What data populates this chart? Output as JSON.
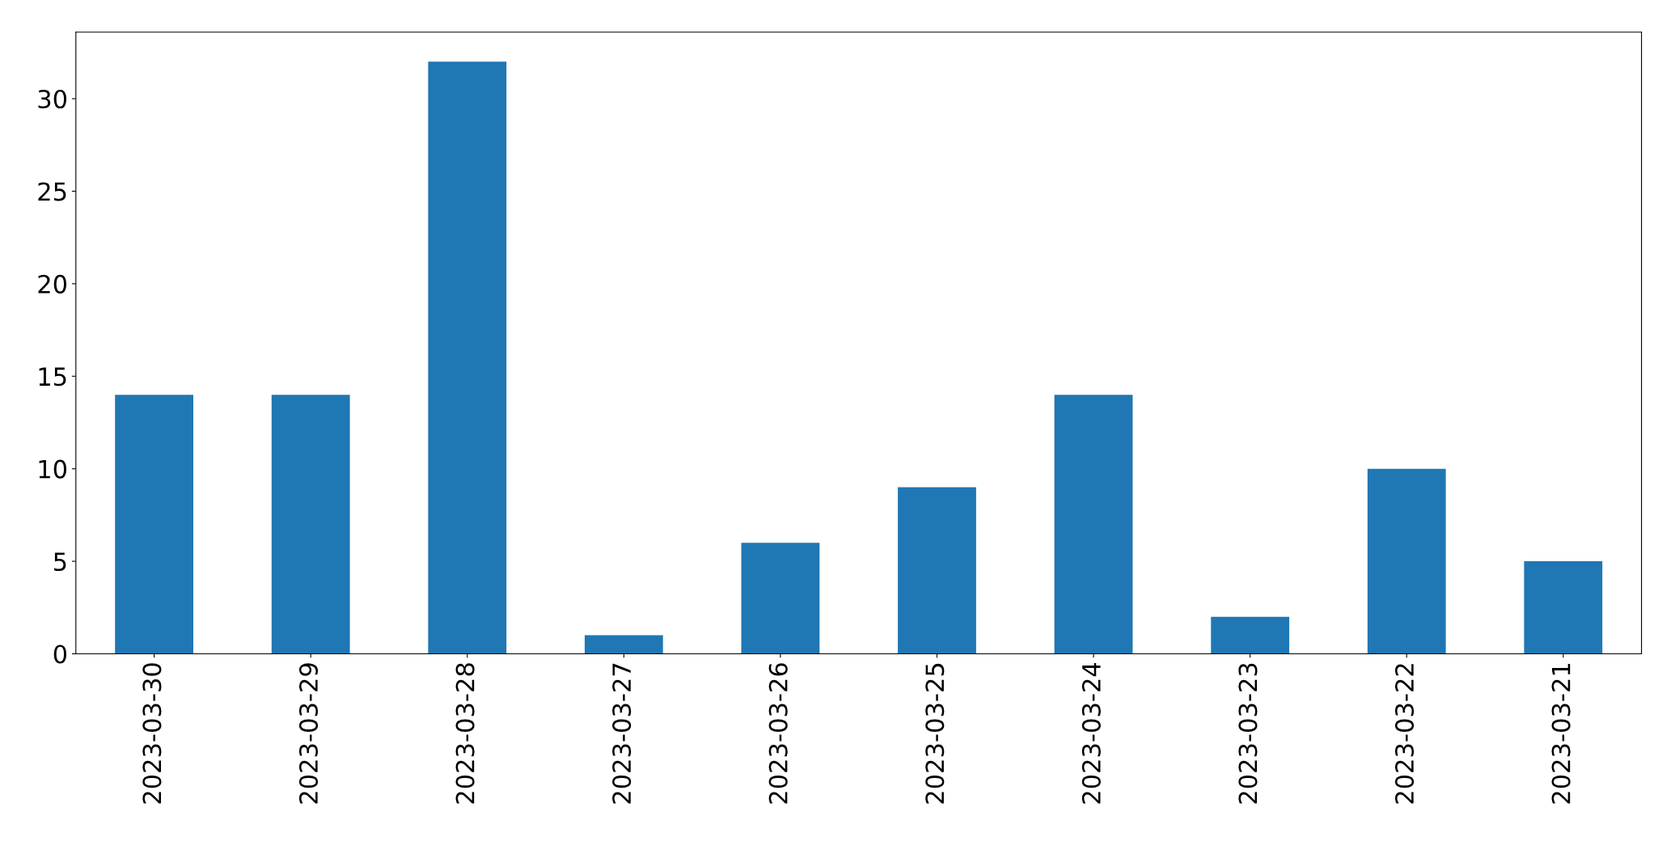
{
  "chart_data": {
    "type": "bar",
    "categories": [
      "2023-03-30",
      "2023-03-29",
      "2023-03-28",
      "2023-03-27",
      "2023-03-26",
      "2023-03-25",
      "2023-03-24",
      "2023-03-23",
      "2023-03-22",
      "2023-03-21"
    ],
    "values": [
      14,
      14,
      32,
      1,
      6,
      9,
      14,
      2,
      10,
      5
    ],
    "color": "#1f77b4",
    "ylim": [
      0,
      33.6
    ],
    "yticks": [
      0,
      5,
      10,
      15,
      20,
      25,
      30
    ],
    "grid": false,
    "legend": false
  }
}
